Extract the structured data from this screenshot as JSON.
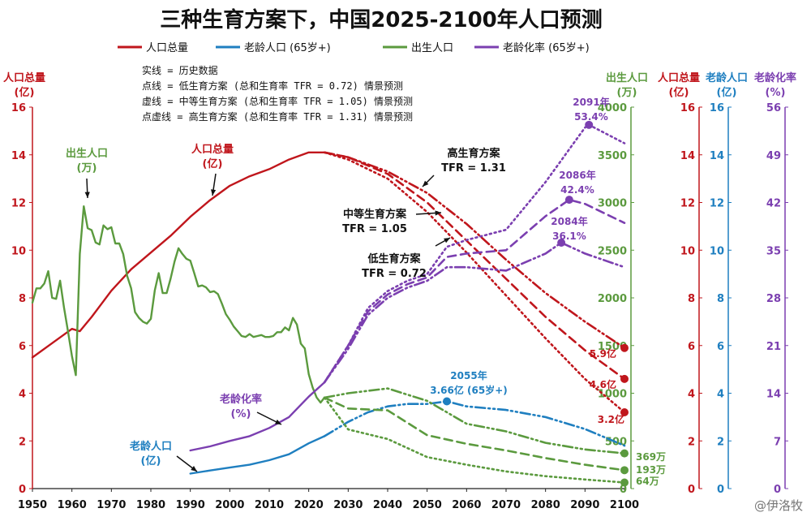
{
  "title": "三种生育方案下，中国2025-2100年人口预测",
  "watermark": "@伊洛牧",
  "colors": {
    "population": "#c0161c",
    "elderly": "#1f7fc0",
    "births": "#5b9a3e",
    "aging": "#7b3fb0"
  },
  "legend": [
    {
      "label": "人口总量",
      "color": "#c0161c"
    },
    {
      "label": "老龄人口 (65岁+)",
      "color": "#1f7fc0"
    },
    {
      "label": "出生人口",
      "color": "#5b9a3e"
    },
    {
      "label": "老龄化率 (65岁+)",
      "color": "#7b3fb0"
    }
  ],
  "notes": [
    "实线 = 历史数据",
    "点线 = 低生育方案 (总和生育率 TFR = 0.72) 情景预测",
    "虚线 = 中等生育方案 (总和生育率 TFR = 1.05) 情景预测",
    "点虚线 = 高生育方案 (总和生育率 TFR = 1.31) 情景预测"
  ],
  "axes": {
    "left": {
      "label1": "人口总量",
      "label2": "(亿)"
    },
    "births": {
      "label1": "出生人口",
      "label2": "(万)"
    },
    "pop_r": {
      "label1": "人口总量",
      "label2": "(亿)"
    },
    "elderly_r": {
      "label1": "老龄人口",
      "label2": "(亿)"
    },
    "aging_r": {
      "label1": "老龄化率",
      "label2": "(%)"
    }
  },
  "annotations": {
    "births_label": [
      "出生人口",
      "(万)"
    ],
    "pop_label": [
      "人口总量",
      "(亿)"
    ],
    "aging_label": [
      "老龄化率",
      "(%)"
    ],
    "elderly_label": [
      "老龄人口",
      "(亿)"
    ],
    "high_label": [
      "高生育方案",
      "TFR = 1.31"
    ],
    "mid_label": [
      "中等生育方案",
      "TFR = 1.05"
    ],
    "low_label": [
      "低生育方案",
      "TFR = 0.72"
    ],
    "peak_2091": [
      "2091年",
      "53.4%"
    ],
    "peak_2086": [
      "2086年",
      "42.4%"
    ],
    "peak_2084": [
      "2084年",
      "36.1%"
    ],
    "elderly_peak": [
      "2055年",
      "3.66亿 (65岁+)"
    ],
    "pop_high_end": "5.9亿",
    "pop_mid_end": "4.6亿",
    "pop_low_end": "3.2亿",
    "births_high_end": "369万",
    "births_mid_end": "193万",
    "births_low_end": "64万"
  },
  "chart_data": {
    "type": "line",
    "title": "三种生育方案下，中国2025-2100年人口预测",
    "x_range": [
      1950,
      2100
    ],
    "x_ticks": [
      1950,
      1960,
      1970,
      1980,
      1990,
      2000,
      2010,
      2020,
      2030,
      2040,
      2050,
      2060,
      2070,
      2080,
      2090,
      2100
    ],
    "axes": {
      "population": {
        "unit": "亿",
        "range": [
          0,
          16
        ],
        "ticks": [
          0,
          2,
          4,
          6,
          8,
          10,
          12,
          14,
          16
        ]
      },
      "births": {
        "unit": "万",
        "range": [
          0,
          4000
        ],
        "ticks": [
          0,
          500,
          1000,
          1500,
          2000,
          2500,
          3000,
          3500,
          4000
        ]
      },
      "elderly": {
        "unit": "亿",
        "range": [
          0,
          16
        ],
        "ticks": [
          0,
          2,
          4,
          6,
          8,
          10,
          12,
          14,
          16
        ]
      },
      "aging_rate": {
        "unit": "%",
        "range": [
          0,
          56
        ],
        "ticks": [
          0,
          7,
          14,
          21,
          28,
          35,
          42,
          49,
          56
        ]
      }
    },
    "series": [
      {
        "name": "人口总量",
        "axis": "population",
        "scenario": "历史数据",
        "style": "solid",
        "points": [
          [
            1950,
            5.5
          ],
          [
            1955,
            6.1
          ],
          [
            1960,
            6.7
          ],
          [
            1962,
            6.6
          ],
          [
            1965,
            7.2
          ],
          [
            1970,
            8.3
          ],
          [
            1975,
            9.2
          ],
          [
            1980,
            9.9
          ],
          [
            1985,
            10.6
          ],
          [
            1990,
            11.4
          ],
          [
            1995,
            12.1
          ],
          [
            2000,
            12.7
          ],
          [
            2005,
            13.1
          ],
          [
            2010,
            13.4
          ],
          [
            2015,
            13.8
          ],
          [
            2020,
            14.1
          ],
          [
            2024,
            14.1
          ]
        ]
      },
      {
        "name": "人口总量",
        "axis": "population",
        "scenario": "低生育方案",
        "style": "dotted",
        "points": [
          [
            2024,
            14.1
          ],
          [
            2030,
            13.8
          ],
          [
            2040,
            13.0
          ],
          [
            2050,
            11.6
          ],
          [
            2060,
            9.9
          ],
          [
            2070,
            8.1
          ],
          [
            2080,
            6.3
          ],
          [
            2090,
            4.6
          ],
          [
            2100,
            3.2
          ]
        ]
      },
      {
        "name": "人口总量",
        "axis": "population",
        "scenario": "中等生育方案",
        "style": "dashed",
        "points": [
          [
            2024,
            14.1
          ],
          [
            2030,
            13.9
          ],
          [
            2040,
            13.2
          ],
          [
            2050,
            12.0
          ],
          [
            2060,
            10.4
          ],
          [
            2070,
            8.8
          ],
          [
            2080,
            7.2
          ],
          [
            2090,
            5.8
          ],
          [
            2100,
            4.6
          ]
        ]
      },
      {
        "name": "人口总量",
        "axis": "population",
        "scenario": "高生育方案",
        "style": "dashdot",
        "points": [
          [
            2024,
            14.1
          ],
          [
            2030,
            13.9
          ],
          [
            2040,
            13.3
          ],
          [
            2050,
            12.4
          ],
          [
            2060,
            11.1
          ],
          [
            2070,
            9.6
          ],
          [
            2080,
            8.2
          ],
          [
            2090,
            7.0
          ],
          [
            2100,
            5.9
          ]
        ]
      },
      {
        "name": "老龄人口",
        "axis": "elderly",
        "scenario": "历史数据",
        "style": "solid",
        "points": [
          [
            1990,
            0.63
          ],
          [
            1995,
            0.76
          ],
          [
            2000,
            0.88
          ],
          [
            2005,
            1.0
          ],
          [
            2010,
            1.19
          ],
          [
            2015,
            1.44
          ],
          [
            2020,
            1.9
          ],
          [
            2024,
            2.2
          ]
        ]
      },
      {
        "name": "老龄人口",
        "axis": "elderly",
        "scenario": "预测",
        "style": "dashdot",
        "points": [
          [
            2024,
            2.2
          ],
          [
            2030,
            2.8
          ],
          [
            2035,
            3.2
          ],
          [
            2040,
            3.45
          ],
          [
            2045,
            3.55
          ],
          [
            2050,
            3.55
          ],
          [
            2055,
            3.66
          ],
          [
            2060,
            3.45
          ],
          [
            2070,
            3.3
          ],
          [
            2080,
            3.0
          ],
          [
            2090,
            2.5
          ],
          [
            2100,
            1.8
          ]
        ]
      },
      {
        "name": "出生人口",
        "axis": "births",
        "scenario": "历史数据",
        "style": "solid",
        "points": [
          [
            1950,
            1950
          ],
          [
            1951,
            2100
          ],
          [
            1952,
            2100
          ],
          [
            1953,
            2150
          ],
          [
            1954,
            2280
          ],
          [
            1955,
            2000
          ],
          [
            1956,
            1990
          ],
          [
            1957,
            2180
          ],
          [
            1958,
            1900
          ],
          [
            1959,
            1650
          ],
          [
            1960,
            1390
          ],
          [
            1961,
            1190
          ],
          [
            1962,
            2460
          ],
          [
            1963,
            2960
          ],
          [
            1964,
            2730
          ],
          [
            1965,
            2710
          ],
          [
            1966,
            2580
          ],
          [
            1967,
            2560
          ],
          [
            1968,
            2760
          ],
          [
            1969,
            2720
          ],
          [
            1970,
            2740
          ],
          [
            1971,
            2570
          ],
          [
            1972,
            2570
          ],
          [
            1973,
            2460
          ],
          [
            1974,
            2230
          ],
          [
            1975,
            2100
          ],
          [
            1976,
            1850
          ],
          [
            1977,
            1790
          ],
          [
            1978,
            1750
          ],
          [
            1979,
            1730
          ],
          [
            1980,
            1780
          ],
          [
            1981,
            2080
          ],
          [
            1982,
            2260
          ],
          [
            1983,
            2050
          ],
          [
            1984,
            2050
          ],
          [
            1985,
            2200
          ],
          [
            1986,
            2380
          ],
          [
            1987,
            2520
          ],
          [
            1988,
            2460
          ],
          [
            1989,
            2410
          ],
          [
            1990,
            2390
          ],
          [
            1991,
            2260
          ],
          [
            1992,
            2120
          ],
          [
            1993,
            2130
          ],
          [
            1994,
            2110
          ],
          [
            1995,
            2060
          ],
          [
            1996,
            2070
          ],
          [
            1997,
            2040
          ],
          [
            1998,
            1940
          ],
          [
            1999,
            1830
          ],
          [
            2000,
            1770
          ],
          [
            2001,
            1700
          ],
          [
            2002,
            1650
          ],
          [
            2003,
            1600
          ],
          [
            2004,
            1590
          ],
          [
            2005,
            1620
          ],
          [
            2006,
            1590
          ],
          [
            2007,
            1600
          ],
          [
            2008,
            1610
          ],
          [
            2009,
            1590
          ],
          [
            2010,
            1590
          ],
          [
            2011,
            1600
          ],
          [
            2012,
            1640
          ],
          [
            2013,
            1640
          ],
          [
            2014,
            1690
          ],
          [
            2015,
            1660
          ],
          [
            2016,
            1790
          ],
          [
            2017,
            1720
          ],
          [
            2018,
            1520
          ],
          [
            2019,
            1470
          ],
          [
            2020,
            1200
          ],
          [
            2021,
            1060
          ],
          [
            2022,
            956
          ],
          [
            2023,
            902
          ],
          [
            2024,
            954
          ]
        ]
      },
      {
        "name": "出生人口",
        "axis": "births",
        "scenario": "低生育方案",
        "style": "dotted",
        "points": [
          [
            2024,
            954
          ],
          [
            2030,
            620
          ],
          [
            2040,
            520
          ],
          [
            2050,
            330
          ],
          [
            2060,
            250
          ],
          [
            2070,
            180
          ],
          [
            2080,
            130
          ],
          [
            2090,
            95
          ],
          [
            2100,
            64
          ]
        ]
      },
      {
        "name": "出生人口",
        "axis": "births",
        "scenario": "中等生育方案",
        "style": "dashed",
        "points": [
          [
            2024,
            954
          ],
          [
            2030,
            840
          ],
          [
            2040,
            820
          ],
          [
            2050,
            560
          ],
          [
            2060,
            470
          ],
          [
            2070,
            400
          ],
          [
            2080,
            320
          ],
          [
            2090,
            250
          ],
          [
            2100,
            193
          ]
        ]
      },
      {
        "name": "出生人口",
        "axis": "births",
        "scenario": "高生育方案",
        "style": "dashdot",
        "points": [
          [
            2024,
            954
          ],
          [
            2030,
            1000
          ],
          [
            2040,
            1050
          ],
          [
            2050,
            920
          ],
          [
            2060,
            680
          ],
          [
            2070,
            600
          ],
          [
            2080,
            480
          ],
          [
            2090,
            410
          ],
          [
            2100,
            369
          ]
        ]
      },
      {
        "name": "老龄化率",
        "axis": "aging_rate",
        "scenario": "历史数据",
        "style": "solid",
        "points": [
          [
            1990,
            5.6
          ],
          [
            1995,
            6.2
          ],
          [
            2000,
            7.0
          ],
          [
            2005,
            7.7
          ],
          [
            2010,
            8.9
          ],
          [
            2015,
            10.5
          ],
          [
            2020,
            13.5
          ],
          [
            2024,
            15.6
          ]
        ]
      },
      {
        "name": "老龄化率",
        "axis": "aging_rate",
        "scenario": "低生育方案",
        "style": "dotted",
        "points": [
          [
            2024,
            15.6
          ],
          [
            2030,
            21
          ],
          [
            2035,
            26.5
          ],
          [
            2040,
            29.0
          ],
          [
            2045,
            30.5
          ],
          [
            2050,
            31.5
          ],
          [
            2055,
            35.5
          ],
          [
            2060,
            36.5
          ],
          [
            2070,
            38
          ],
          [
            2080,
            45
          ],
          [
            2090,
            53.0
          ],
          [
            2091,
            53.4
          ],
          [
            2100,
            50.7
          ]
        ]
      },
      {
        "name": "老龄化率",
        "axis": "aging_rate",
        "scenario": "中等生育方案",
        "style": "dashed",
        "points": [
          [
            2024,
            15.6
          ],
          [
            2030,
            21
          ],
          [
            2035,
            26
          ],
          [
            2040,
            28.5
          ],
          [
            2045,
            30
          ],
          [
            2050,
            31.0
          ],
          [
            2055,
            34
          ],
          [
            2060,
            34.5
          ],
          [
            2070,
            35
          ],
          [
            2080,
            40
          ],
          [
            2086,
            42.4
          ],
          [
            2090,
            41.8
          ],
          [
            2100,
            39.0
          ]
        ]
      },
      {
        "name": "老龄化率",
        "axis": "aging_rate",
        "scenario": "高生育方案",
        "style": "dashdot",
        "points": [
          [
            2024,
            15.6
          ],
          [
            2030,
            20.5
          ],
          [
            2035,
            25.5
          ],
          [
            2040,
            28
          ],
          [
            2045,
            29.5
          ],
          [
            2050,
            30.5
          ],
          [
            2055,
            32.5
          ],
          [
            2060,
            32.5
          ],
          [
            2070,
            32
          ],
          [
            2080,
            34.5
          ],
          [
            2084,
            36.1
          ],
          [
            2090,
            34.5
          ],
          [
            2100,
            32.5
          ]
        ]
      }
    ]
  }
}
